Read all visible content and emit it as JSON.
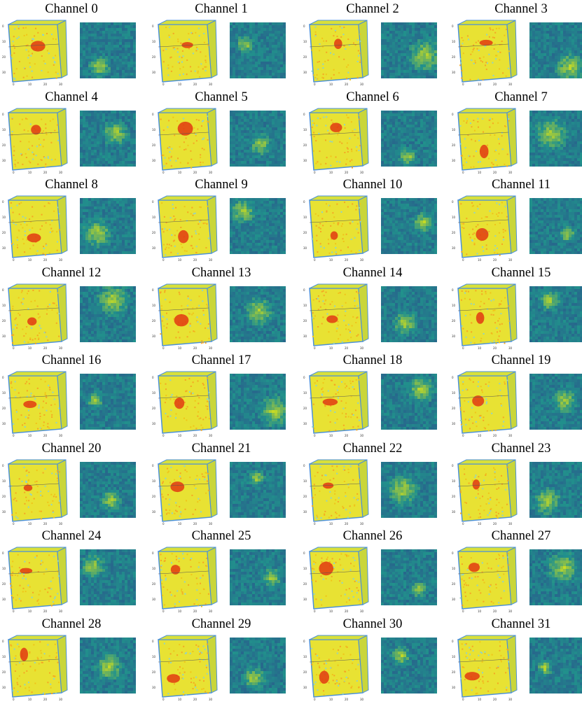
{
  "figure": {
    "panels": [
      {
        "title": "Channel 0"
      },
      {
        "title": "Channel 1"
      },
      {
        "title": "Channel 2"
      },
      {
        "title": "Channel 3"
      },
      {
        "title": "Channel 4"
      },
      {
        "title": "Channel 5"
      },
      {
        "title": "Channel 6"
      },
      {
        "title": "Channel 7"
      },
      {
        "title": "Channel 8"
      },
      {
        "title": "Channel 9"
      },
      {
        "title": "Channel 10"
      },
      {
        "title": "Channel 11"
      },
      {
        "title": "Channel 12"
      },
      {
        "title": "Channel 13"
      },
      {
        "title": "Channel 14"
      },
      {
        "title": "Channel 15"
      },
      {
        "title": "Channel 16"
      },
      {
        "title": "Channel 17"
      },
      {
        "title": "Channel 18"
      },
      {
        "title": "Channel 19"
      },
      {
        "title": "Channel 20"
      },
      {
        "title": "Channel 21"
      },
      {
        "title": "Channel 22"
      },
      {
        "title": "Channel 23"
      },
      {
        "title": "Channel 24"
      },
      {
        "title": "Channel 25"
      },
      {
        "title": "Channel 26"
      },
      {
        "title": "Channel 27"
      },
      {
        "title": "Channel 28"
      },
      {
        "title": "Channel 29"
      },
      {
        "title": "Channel 30"
      },
      {
        "title": "Channel 31"
      }
    ],
    "axis_ticks": {
      "vertical": [
        "0",
        "10",
        "20",
        "30"
      ],
      "bottom": [
        "0",
        "10",
        "20",
        "30"
      ]
    },
    "colors": {
      "cube_face": "#e8e233",
      "cube_hot": "#e23a12",
      "cube_edge": "#4a90d9",
      "heat_low": "#2d3f8c",
      "heat_mid": "#21918c",
      "heat_high": "#d8e219"
    }
  }
}
